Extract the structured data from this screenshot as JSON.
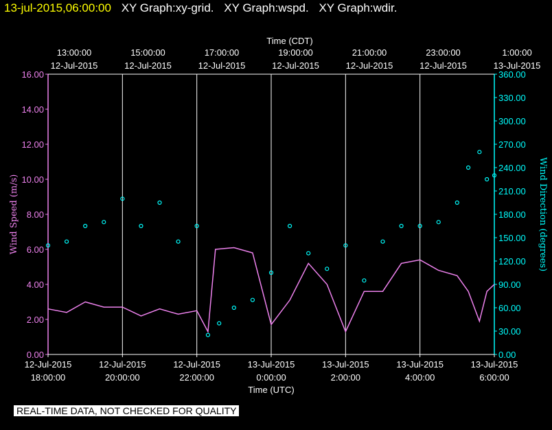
{
  "header": {
    "timestamp": "13-jul-2015,06:00:00",
    "graphs": [
      "XY Graph:xy-grid.",
      "XY Graph:wspd.",
      "XY Graph:wdir."
    ]
  },
  "note": "REAL-TIME DATA, NOT CHECKED FOR QUALITY",
  "colors": {
    "background": "#000000",
    "speed": "#ee82ee",
    "direction": "#00ffff",
    "axis_text": "#ffffff",
    "grid": "#ffffff"
  },
  "chart_data": {
    "type": "line",
    "top_axis": {
      "title": "Time (CDT)",
      "ticks": [
        [
          "13:00:00",
          "12-Jul-2015"
        ],
        [
          "15:00:00",
          "12-Jul-2015"
        ],
        [
          "17:00:00",
          "12-Jul-2015"
        ],
        [
          "19:00:00",
          "12-Jul-2015"
        ],
        [
          "21:00:00",
          "12-Jul-2015"
        ],
        [
          "23:00:00",
          "12-Jul-2015"
        ],
        [
          "1:00:00",
          "13-Jul-2015"
        ]
      ]
    },
    "bottom_axis": {
      "title": "Time (UTC)",
      "ticks": [
        [
          "12-Jul-2015",
          "18:00:00"
        ],
        [
          "12-Jul-2015",
          "20:00:00"
        ],
        [
          "12-Jul-2015",
          "22:00:00"
        ],
        [
          "13-Jul-2015",
          "0:00:00"
        ],
        [
          "13-Jul-2015",
          "2:00:00"
        ],
        [
          "13-Jul-2015",
          "4:00:00"
        ],
        [
          "13-Jul-2015",
          "6:00:00"
        ]
      ],
      "xlim_hours_utc": [
        18,
        30
      ]
    },
    "left_axis": {
      "title": "Wind Speed (m/s)",
      "ylim": [
        0,
        16
      ],
      "ticks": [
        "0.00",
        "2.00",
        "4.00",
        "6.00",
        "8.00",
        "10.00",
        "12.00",
        "14.00",
        "16.00"
      ]
    },
    "right_axis": {
      "title": "Wind Direction (degrees)",
      "ylim": [
        0,
        360
      ],
      "ticks": [
        "0.00",
        "30.00",
        "60.00",
        "90.00",
        "120.00",
        "150.00",
        "180.00",
        "210.00",
        "240.00",
        "270.00",
        "300.00",
        "330.00",
        "360.00"
      ]
    },
    "grid": "vertical",
    "series": [
      {
        "name": "wspd",
        "axis": "left",
        "style": "line",
        "x_hours_utc": [
          18.0,
          18.5,
          19.0,
          19.5,
          20.0,
          20.5,
          21.0,
          21.5,
          22.0,
          22.3,
          22.5,
          23.0,
          23.5,
          24.0,
          24.5,
          25.0,
          25.5,
          26.0,
          26.5,
          27.0,
          27.5,
          28.0,
          28.5,
          29.0,
          29.3,
          29.6,
          29.8,
          30.0
        ],
        "y": [
          2.6,
          2.4,
          3.0,
          2.7,
          2.7,
          2.2,
          2.6,
          2.3,
          2.5,
          1.3,
          6.0,
          6.1,
          5.8,
          1.7,
          3.1,
          5.2,
          4.0,
          1.3,
          3.6,
          3.6,
          5.2,
          5.4,
          4.8,
          4.5,
          3.6,
          1.9,
          3.6,
          4.0
        ]
      },
      {
        "name": "wdir",
        "axis": "right",
        "style": "points",
        "x_hours_utc": [
          18.0,
          18.5,
          19.0,
          19.5,
          20.0,
          20.5,
          21.0,
          21.5,
          22.0,
          22.3,
          22.6,
          23.0,
          23.5,
          24.0,
          24.5,
          25.0,
          25.5,
          26.0,
          26.5,
          27.0,
          27.5,
          28.0,
          28.5,
          29.0,
          29.3,
          29.6,
          29.8,
          30.0
        ],
        "y": [
          140,
          145,
          165,
          170,
          200,
          165,
          195,
          145,
          165,
          25,
          40,
          60,
          70,
          105,
          165,
          130,
          110,
          140,
          95,
          145,
          165,
          165,
          170,
          195,
          240,
          260,
          225,
          230
        ]
      }
    ]
  }
}
